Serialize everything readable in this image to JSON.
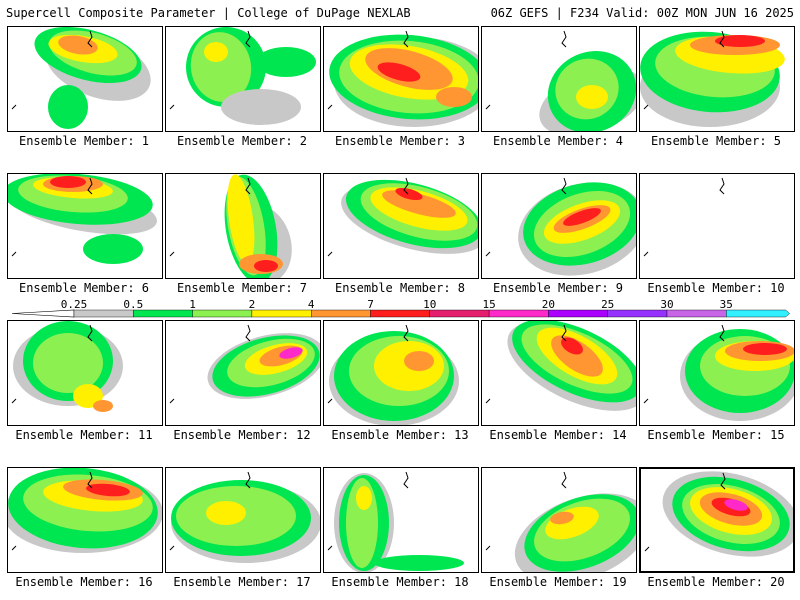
{
  "header": {
    "left": "Supercell Composite Parameter | College of DuPage NEXLAB",
    "right": "06Z GEFS | F234 Valid: 00Z MON JUN 16 2025"
  },
  "legend": {
    "levels": [
      "0.25",
      "0.5",
      "1",
      "2",
      "4",
      "7",
      "10",
      "15",
      "20",
      "25",
      "30",
      "35"
    ],
    "colors": [
      "#c8c8c8",
      "#00e650",
      "#8cf050",
      "#fff000",
      "#ff9632",
      "#ff1e1e",
      "#e61e6e",
      "#ff28c8",
      "#aa00ff",
      "#9632ff",
      "#c864e6",
      "#32f0ff"
    ]
  },
  "members": [
    {
      "label": "Ensemble Member: 1"
    },
    {
      "label": "Ensemble Member: 2"
    },
    {
      "label": "Ensemble Member: 3"
    },
    {
      "label": "Ensemble Member: 4"
    },
    {
      "label": "Ensemble Member: 5"
    },
    {
      "label": "Ensemble Member: 6"
    },
    {
      "label": "Ensemble Member: 7"
    },
    {
      "label": "Ensemble Member: 8"
    },
    {
      "label": "Ensemble Member: 9"
    },
    {
      "label": "Ensemble Member: 10"
    },
    {
      "label": "Ensemble Member: 11"
    },
    {
      "label": "Ensemble Member: 12"
    },
    {
      "label": "Ensemble Member: 13"
    },
    {
      "label": "Ensemble Member: 14"
    },
    {
      "label": "Ensemble Member: 15"
    },
    {
      "label": "Ensemble Member: 16"
    },
    {
      "label": "Ensemble Member: 17"
    },
    {
      "label": "Ensemble Member: 18"
    },
    {
      "label": "Ensemble Member: 19"
    },
    {
      "label": "Ensemble Member: 20"
    }
  ]
}
